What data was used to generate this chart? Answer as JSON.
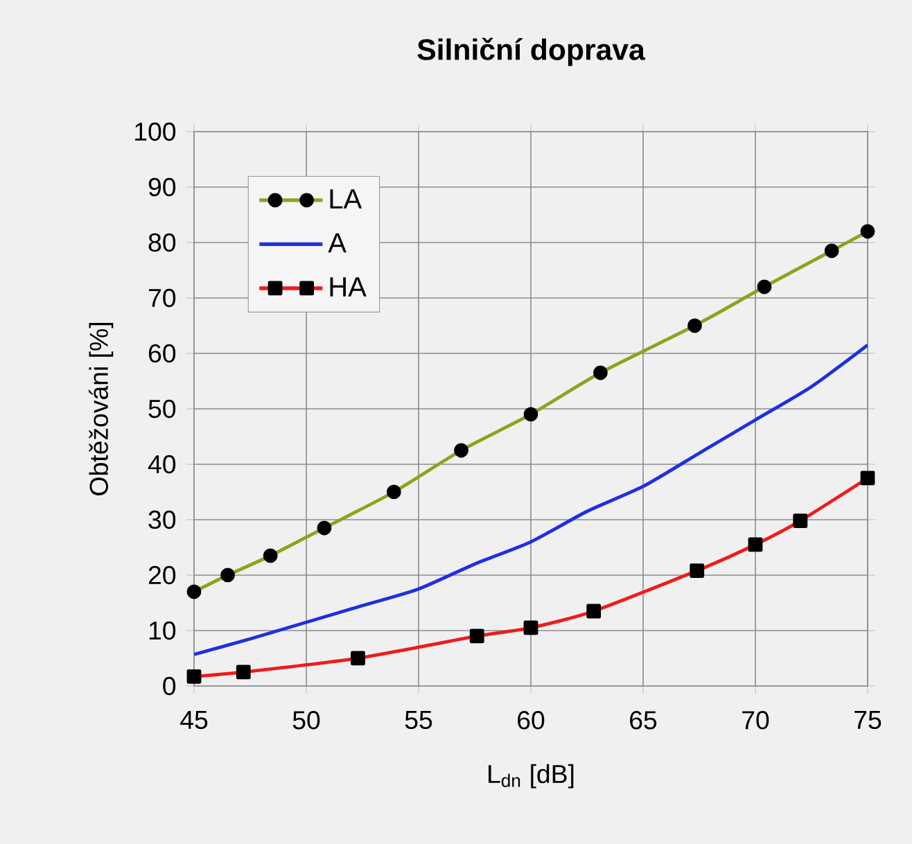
{
  "chart_data": {
    "type": "line",
    "title": "Silniční doprava",
    "xlabel": "L$_{dn}$ [dB]",
    "ylabel": "Obtěžováni [%]",
    "xlim": [
      45,
      75
    ],
    "xticks": [
      45,
      50,
      55,
      60,
      65,
      70,
      75
    ],
    "ylim": [
      0,
      100
    ],
    "yticks": [
      0,
      10,
      20,
      30,
      40,
      50,
      60,
      70,
      80,
      90,
      100
    ],
    "grid": true,
    "legend": "top left",
    "series": [
      {
        "name": "LA",
        "color": "#8ea21e",
        "marker": "circle",
        "x": [
          45,
          46.5,
          48.4,
          50.8,
          53.9,
          56.9,
          60,
          63.1,
          67.3,
          70.4,
          73.4,
          75
        ],
        "values": [
          17,
          20,
          23.5,
          28.5,
          35,
          42.5,
          49,
          56.5,
          65,
          72,
          78.5,
          82
        ]
      },
      {
        "name": "A",
        "color": "#1f2fe0",
        "x": [
          45,
          47.5,
          50,
          52.5,
          55,
          57.5,
          60,
          62.5,
          65,
          67.5,
          70,
          72.5,
          75
        ],
        "values": [
          5.7,
          8.5,
          11.5,
          14.5,
          17.5,
          22,
          26,
          31.5,
          36,
          42,
          48,
          54,
          61.5
        ]
      },
      {
        "name": "HA",
        "color": "#ee1c1c",
        "marker": "square",
        "x": [
          45,
          47.2,
          52.3,
          57.6,
          60,
          62.8,
          67.4,
          70,
          72,
          75
        ],
        "values": [
          1.7,
          2.5,
          5,
          9,
          10.5,
          13.5,
          20.8,
          25.5,
          29.8,
          37.5
        ]
      }
    ]
  }
}
